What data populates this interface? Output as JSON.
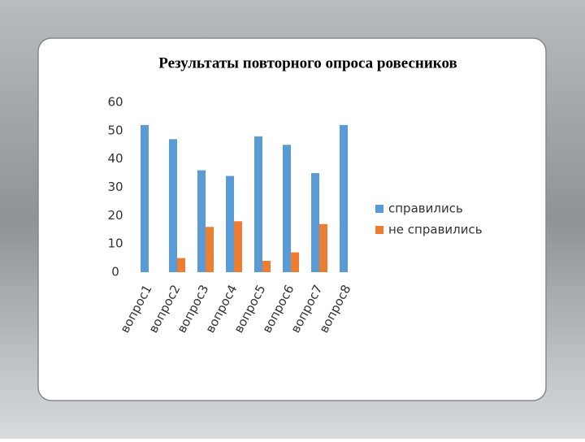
{
  "chart_data": {
    "type": "bar",
    "title": "Результаты повторного опроса ровесников",
    "categories": [
      "вопрос1",
      "вопрос2",
      "вопрос3",
      "вопрос4",
      "вопрос5",
      "вопрос6",
      "вопрос7",
      "вопрос8"
    ],
    "series": [
      {
        "name": "справились",
        "color": "#5b9bd5",
        "values": [
          52,
          47,
          36,
          34,
          48,
          45,
          35,
          52
        ]
      },
      {
        "name": "не справились",
        "color": "#ed7d31",
        "values": [
          0,
          5,
          16,
          18,
          4,
          7,
          17,
          0
        ]
      }
    ],
    "ylim": [
      0,
      60
    ],
    "yticks": [
      0,
      10,
      20,
      30,
      40,
      50,
      60
    ],
    "grid": false,
    "legend": "right"
  }
}
